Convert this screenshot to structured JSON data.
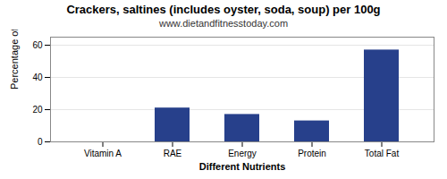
{
  "chart_data": {
    "type": "bar",
    "title": "Crackers, saltines (includes oyster, soda, soup) per 100g",
    "subtitle": "www.dietandfitnesstoday.com",
    "xlabel": "Different Nutrients",
    "ylabel": "Percentage of RDH (%)",
    "categories": [
      "Vitamin A",
      "RAE",
      "Energy",
      "Protein",
      "Total Fat"
    ],
    "values": [
      0,
      21,
      17,
      13,
      57
    ],
    "color": "#27408b",
    "ylim": [
      0,
      65
    ],
    "yticks": [
      0,
      20,
      40,
      60
    ],
    "grid": true
  }
}
